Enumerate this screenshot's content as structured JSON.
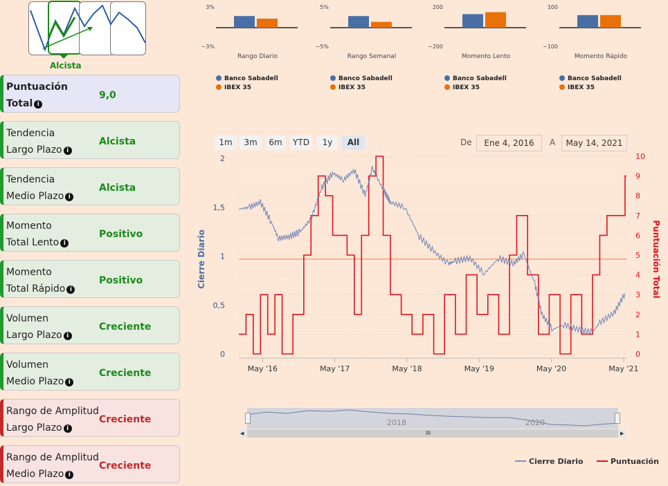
{
  "trend": {
    "label": "Alcista"
  },
  "panel": [
    {
      "line1": "Puntuación",
      "line2": "Total",
      "value": "9,0",
      "kind": "total"
    },
    {
      "line1": "Tendencia",
      "line2": "Largo Plazo",
      "value": "Alcista",
      "kind": "green"
    },
    {
      "line1": "Tendencia",
      "line2": "Medio Plazo",
      "value": "Alcista",
      "kind": "green"
    },
    {
      "line1": "Momento",
      "line2": "Total Lento",
      "value": "Positivo",
      "kind": "green"
    },
    {
      "line1": "Momento",
      "line2": "Total Rápido",
      "value": "Positivo",
      "kind": "green"
    },
    {
      "line1": "Volumen",
      "line2": "Largo Plazo",
      "value": "Creciente",
      "kind": "green"
    },
    {
      "line1": "Volumen",
      "line2": "Medio Plazo",
      "value": "Creciente",
      "kind": "green"
    },
    {
      "line1": "Rango de Amplitud",
      "line2": "Largo Plazo",
      "value": "Creciente",
      "kind": "red"
    },
    {
      "line1": "Rango de Amplitud",
      "line2": "Medio Plazo",
      "value": "Creciente",
      "kind": "red"
    }
  ],
  "mini_charts": [
    {
      "title": "Rango Diario",
      "top": "3%",
      "bottom": "−3%"
    },
    {
      "title": "Rango Semanal",
      "top": "5%",
      "bottom": "−5%"
    },
    {
      "title": "Momento Lento",
      "top": "200",
      "bottom": "−200"
    },
    {
      "title": "Momento Rápido",
      "top": "100",
      "bottom": "−100"
    }
  ],
  "legend_small": {
    "a": "Banco Sabadell",
    "b": "IBEX 35"
  },
  "colors": {
    "blue": "#4a6fa5",
    "orange": "#e8710a",
    "red": "#e8101a",
    "green": "#1b8a1b",
    "ref": "#f4a07a"
  },
  "range_buttons": [
    "1m",
    "3m",
    "6m",
    "YTD",
    "1y",
    "All"
  ],
  "date_range": {
    "from_label": "De",
    "from": "Ene 4, 2016",
    "to_label": "A",
    "to": "May 14, 2021"
  },
  "navigator": {
    "labels": [
      "2018",
      "2020"
    ],
    "handle": "III"
  },
  "legend_main": {
    "price": "Cierre Diario",
    "score": "Puntuación"
  },
  "chart_data": [
    {
      "type": "bar",
      "series": [
        {
          "name": "Banco Sabadell",
          "values": [
            1.8,
            3.0,
            140,
            65
          ]
        },
        {
          "name": "IBEX 35",
          "values": [
            1.4,
            1.5,
            160,
            65
          ]
        }
      ],
      "categories": [
        "Rango Diario",
        "Rango Semanal",
        "Momento Lento",
        "Momento Rápido"
      ]
    },
    {
      "type": "line",
      "title": "",
      "ylabel": "Cierre Diario",
      "y2label": "Puntuación Total",
      "x_ticks": [
        "May '16",
        "May '17",
        "May '18",
        "May '19",
        "May '20",
        "May '21"
      ],
      "y_ticks": [
        "0",
        "0,5",
        "1",
        "1,5",
        "2"
      ],
      "y2_ticks": [
        "0",
        "1",
        "2",
        "3",
        "4",
        "5",
        "6",
        "7",
        "8",
        "9",
        "10"
      ],
      "ylim": [
        0,
        2
      ],
      "y2lim": [
        0,
        10
      ],
      "reference_y2": 4.8,
      "price_series": {
        "name": "Cierre Diario",
        "x": [
          2016.0,
          2016.15,
          2016.3,
          2016.45,
          2016.55,
          2016.7,
          2016.85,
          2017.0,
          2017.15,
          2017.3,
          2017.45,
          2017.6,
          2017.75,
          2017.85,
          2018.0,
          2018.1,
          2018.3,
          2018.5,
          2018.7,
          2018.9,
          2019.0,
          2019.2,
          2019.4,
          2019.6,
          2019.8,
          2019.95,
          2020.1,
          2020.2,
          2020.35,
          2020.5,
          2020.7,
          2020.9,
          2021.0,
          2021.2,
          2021.35
        ],
        "y": [
          1.48,
          1.5,
          1.55,
          1.35,
          1.18,
          1.2,
          1.25,
          1.38,
          1.7,
          1.85,
          1.78,
          1.88,
          1.62,
          1.9,
          1.68,
          1.55,
          1.5,
          1.2,
          1.05,
          0.92,
          0.95,
          0.98,
          0.82,
          0.98,
          0.92,
          1.02,
          0.72,
          0.4,
          0.25,
          0.3,
          0.25,
          0.22,
          0.32,
          0.42,
          0.62
        ]
      },
      "score_series": {
        "name": "Puntuación",
        "x": [
          2016.0,
          2016.1,
          2016.2,
          2016.3,
          2016.4,
          2016.5,
          2016.6,
          2016.75,
          2016.9,
          2017.0,
          2017.1,
          2017.2,
          2017.3,
          2017.5,
          2017.6,
          2017.7,
          2017.8,
          2017.9,
          2018.0,
          2018.1,
          2018.25,
          2018.4,
          2018.55,
          2018.7,
          2018.85,
          2019.0,
          2019.15,
          2019.3,
          2019.45,
          2019.6,
          2019.75,
          2019.85,
          2020.0,
          2020.15,
          2020.3,
          2020.45,
          2020.6,
          2020.75,
          2020.9,
          2021.0,
          2021.1,
          2021.25,
          2021.35
        ],
        "y": [
          1,
          2,
          0,
          3,
          1,
          3,
          0,
          2,
          5,
          7,
          9,
          8,
          6,
          5,
          2,
          6,
          9,
          10,
          6,
          3,
          2,
          1,
          2,
          0,
          3,
          1,
          4,
          2,
          3,
          1,
          5,
          7,
          4,
          1,
          3,
          0,
          3,
          1,
          4,
          6,
          7,
          7,
          9
        ]
      }
    }
  ]
}
